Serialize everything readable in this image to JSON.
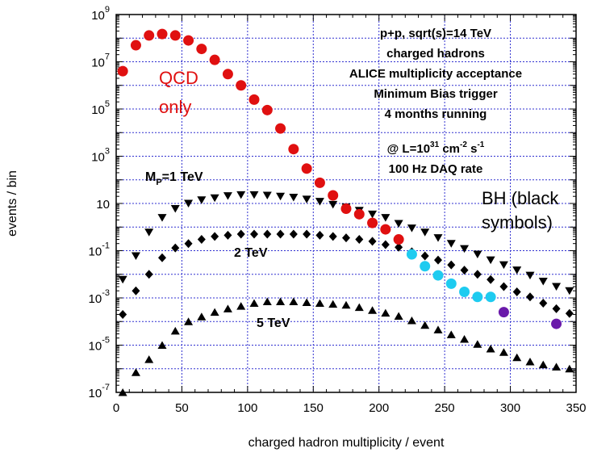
{
  "chart_data": {
    "type": "scatter",
    "xlabel": "charged hadron multiplicity / event",
    "ylabel": "events / bin",
    "xlim": [
      0,
      350
    ],
    "ylim_log10": [
      -7,
      9
    ],
    "y_scale": "log",
    "grid": true,
    "x_ticks": [
      "0",
      "50",
      "100",
      "150",
      "200",
      "250",
      "300",
      "350"
    ],
    "y_ticks": [
      {
        "base": "10",
        "exp": "9",
        "value": 1000000000.0
      },
      {
        "base": "10",
        "exp": "7",
        "value": 10000000.0
      },
      {
        "base": "10",
        "exp": "5",
        "value": 100000.0
      },
      {
        "base": "10",
        "exp": "3",
        "value": 1000.0
      },
      {
        "base": "10",
        "exp": "",
        "value": 10
      },
      {
        "base": "10",
        "exp": "-1",
        "value": 0.1
      },
      {
        "base": "10",
        "exp": "-3",
        "value": 0.001
      },
      {
        "base": "10",
        "exp": "-5",
        "value": 1e-05
      },
      {
        "base": "10",
        "exp": "-7",
        "value": 1e-07
      }
    ],
    "info_box": [
      {
        "text": "p+p, sqrt(s)=14 TeV"
      },
      {
        "text": "charged hadrons"
      },
      {
        "text": "ALICE multiplicity acceptance"
      },
      {
        "text": "Minimum Bias trigger"
      },
      {
        "text": "4 months running"
      },
      {
        "pre": "@ L=10",
        "sup1": "31",
        "mid": " cm",
        "sup2": "-2",
        "mid2": " s",
        "sup3": "-1"
      },
      {
        "text": "100 Hz DAQ rate"
      }
    ],
    "annotations": {
      "qcd": [
        "QCD",
        "only"
      ],
      "bh": [
        "BH (black",
        "symbols)"
      ],
      "mp1": {
        "pre": "M",
        "sub": "P",
        "post": "=1 TeV"
      },
      "mp2": "2 TeV",
      "mp5": "5 TeV"
    },
    "series": [
      {
        "marker": "circle",
        "color": "#e01010",
        "points": [
          [
            5,
            4000000.0
          ],
          [
            15,
            50000000.0
          ],
          [
            25,
            130000000.0
          ],
          [
            35,
            150000000.0
          ],
          [
            45,
            130000000.0
          ],
          [
            55,
            80000000.0
          ],
          [
            65,
            35000000.0
          ],
          [
            75,
            12000000.0
          ],
          [
            85,
            3000000.0
          ],
          [
            95,
            1000000.0
          ],
          [
            105,
            250000.0
          ],
          [
            115,
            90000.0
          ],
          [
            125,
            15000.0
          ],
          [
            135,
            2000.0
          ],
          [
            145,
            300
          ],
          [
            155,
            75
          ],
          [
            165,
            22
          ],
          [
            175,
            6
          ],
          [
            185,
            3.5
          ],
          [
            195,
            1.5
          ],
          [
            205,
            0.8
          ],
          [
            215,
            0.3
          ]
        ]
      },
      {
        "marker": "circle",
        "color": "#1ecbf0",
        "points": [
          [
            225,
            0.07
          ],
          [
            235,
            0.022
          ],
          [
            245,
            0.009
          ],
          [
            255,
            0.004
          ],
          [
            265,
            0.0018
          ],
          [
            275,
            0.0011
          ],
          [
            285,
            0.0011
          ]
        ]
      },
      {
        "marker": "circle",
        "color": "#6a1aaa",
        "points": [
          [
            295,
            0.00025
          ],
          [
            335,
            8e-05
          ]
        ]
      },
      {
        "marker": "triangle-down",
        "color": "#000000",
        "points": [
          [
            5,
            0.006
          ],
          [
            15,
            0.06
          ],
          [
            25,
            0.6
          ],
          [
            35,
            2.5
          ],
          [
            45,
            6
          ],
          [
            55,
            10
          ],
          [
            65,
            14
          ],
          [
            75,
            17
          ],
          [
            85,
            21
          ],
          [
            95,
            23
          ],
          [
            105,
            23
          ],
          [
            115,
            22
          ],
          [
            125,
            20
          ],
          [
            135,
            18
          ],
          [
            145,
            15
          ],
          [
            155,
            12
          ],
          [
            165,
            9
          ],
          [
            175,
            7
          ],
          [
            185,
            5
          ],
          [
            195,
            3.5
          ],
          [
            205,
            2.5
          ],
          [
            215,
            1.4
          ],
          [
            225,
            0.9
          ],
          [
            235,
            0.6
          ],
          [
            245,
            0.35
          ],
          [
            255,
            0.2
          ],
          [
            265,
            0.12
          ],
          [
            275,
            0.07
          ],
          [
            285,
            0.04
          ],
          [
            295,
            0.025
          ],
          [
            305,
            0.015
          ],
          [
            315,
            0.009
          ],
          [
            325,
            0.005
          ],
          [
            335,
            0.003
          ],
          [
            345,
            0.002
          ]
        ]
      },
      {
        "marker": "diamond",
        "color": "#000000",
        "points": [
          [
            5,
            0.0002
          ],
          [
            15,
            0.002
          ],
          [
            25,
            0.01
          ],
          [
            35,
            0.05
          ],
          [
            45,
            0.13
          ],
          [
            55,
            0.2
          ],
          [
            65,
            0.3
          ],
          [
            75,
            0.4
          ],
          [
            85,
            0.45
          ],
          [
            95,
            0.5
          ],
          [
            105,
            0.5
          ],
          [
            115,
            0.5
          ],
          [
            125,
            0.5
          ],
          [
            135,
            0.5
          ],
          [
            145,
            0.5
          ],
          [
            155,
            0.45
          ],
          [
            165,
            0.4
          ],
          [
            175,
            0.35
          ],
          [
            185,
            0.3
          ],
          [
            195,
            0.25
          ],
          [
            205,
            0.18
          ],
          [
            215,
            0.14
          ],
          [
            225,
            0.09
          ],
          [
            235,
            0.06
          ],
          [
            245,
            0.04
          ],
          [
            255,
            0.025
          ],
          [
            265,
            0.015
          ],
          [
            275,
            0.01
          ],
          [
            285,
            0.006
          ],
          [
            295,
            0.003
          ],
          [
            305,
            0.0018
          ],
          [
            315,
            0.0011
          ],
          [
            325,
            0.0006
          ],
          [
            335,
            0.00035
          ],
          [
            345,
            0.00022
          ]
        ]
      },
      {
        "marker": "triangle-up",
        "color": "#000000",
        "points": [
          [
            5,
            1e-07
          ],
          [
            15,
            7e-07
          ],
          [
            25,
            2.5e-06
          ],
          [
            35,
            1e-05
          ],
          [
            45,
            4e-05
          ],
          [
            55,
            0.0001
          ],
          [
            65,
            0.00016
          ],
          [
            75,
            0.00025
          ],
          [
            85,
            0.00035
          ],
          [
            95,
            0.00045
          ],
          [
            105,
            0.0006
          ],
          [
            115,
            0.0007
          ],
          [
            125,
            0.0007
          ],
          [
            135,
            0.0007
          ],
          [
            145,
            0.00065
          ],
          [
            155,
            0.0006
          ],
          [
            165,
            0.00055
          ],
          [
            175,
            0.0005
          ],
          [
            185,
            0.0004
          ],
          [
            195,
            0.0003
          ],
          [
            205,
            0.00023
          ],
          [
            215,
            0.00017
          ],
          [
            225,
            0.00011
          ],
          [
            235,
            7e-05
          ],
          [
            245,
            4.5e-05
          ],
          [
            255,
            2.8e-05
          ],
          [
            265,
            1.8e-05
          ],
          [
            275,
            1.1e-05
          ],
          [
            285,
            7e-06
          ],
          [
            295,
            5e-06
          ],
          [
            305,
            3e-06
          ],
          [
            315,
            2e-06
          ],
          [
            325,
            1.5e-06
          ],
          [
            335,
            1.2e-06
          ],
          [
            345,
            1e-06
          ]
        ]
      }
    ]
  }
}
